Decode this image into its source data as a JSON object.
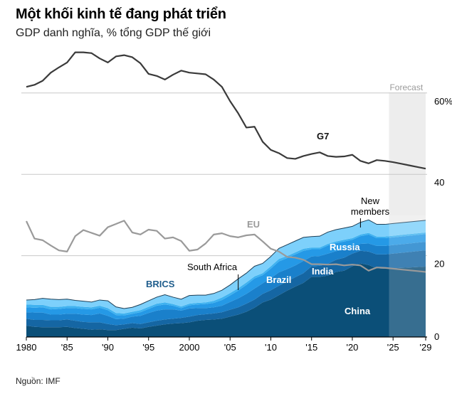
{
  "header": {
    "title": "Một khối kinh tế đang phát triển",
    "subtitle": "GDP danh nghĩa, % tổng GDP thế giới"
  },
  "footer": {
    "source": "Nguồn: IMF"
  },
  "colors": {
    "g7": "#3a3a3a",
    "eu": "#9a9a9a",
    "brics_label": "#1f5d8c",
    "china": "#0b4f78",
    "india": "#1566a3",
    "brazil": "#1a80cb",
    "russia": "#2599e6",
    "south_africa": "#3fb2f0",
    "new_members": "#7dd0fb",
    "forecast_shade": "#e6e6e6",
    "grid": "#c8c8c8"
  },
  "chart_data": {
    "type": "area",
    "title": "Một khối kinh tế đang phát triển",
    "subtitle": "GDP danh nghĩa, % tổng GDP thế giới",
    "x_range": [
      1980,
      2029
    ],
    "y_range": [
      0,
      70
    ],
    "y_ticks": [
      0,
      20,
      40,
      60
    ],
    "y_tick_labels": [
      "0",
      "20",
      "40",
      "60%"
    ],
    "x_ticks": [
      1980,
      1985,
      1990,
      1995,
      2000,
      2005,
      2010,
      2015,
      2020,
      2025,
      2029
    ],
    "x_tick_labels": [
      "1980",
      "'85",
      "'90",
      "'95",
      "2000",
      "'05",
      "'10",
      "'15",
      "'20",
      "'25",
      "'29"
    ],
    "forecast": {
      "start": 2024.5,
      "end": 2029,
      "label": "Forecast"
    },
    "years": [
      1980,
      1981,
      1982,
      1983,
      1984,
      1985,
      1986,
      1987,
      1988,
      1989,
      1990,
      1991,
      1992,
      1993,
      1994,
      1995,
      1996,
      1997,
      1998,
      1999,
      2000,
      2001,
      2002,
      2003,
      2004,
      2005,
      2006,
      2007,
      2008,
      2009,
      2010,
      2011,
      2012,
      2013,
      2014,
      2015,
      2016,
      2017,
      2018,
      2019,
      2020,
      2021,
      2022,
      2023,
      2024,
      2025,
      2026,
      2027,
      2028,
      2029
    ],
    "lines": [
      {
        "name": "G7",
        "label": "G7",
        "values": [
          61.5,
          62,
          63,
          65,
          66.3,
          67.5,
          70,
          70,
          69.8,
          68.5,
          67.5,
          69,
          69.3,
          68.8,
          67.3,
          64.7,
          64.2,
          63.3,
          64.5,
          65.5,
          65,
          64.8,
          64.6,
          63.3,
          61.5,
          58,
          55,
          51.5,
          51.7,
          48,
          46,
          45.2,
          44,
          43.8,
          44.5,
          45,
          45.4,
          44.5,
          44.3,
          44.4,
          44.8,
          43.3,
          42.7,
          43.5,
          43.3,
          43,
          42.6,
          42.2,
          41.8,
          41.4
        ]
      },
      {
        "name": "EU",
        "label": "EU",
        "values": [
          28.5,
          24.2,
          23.8,
          22.5,
          21.3,
          21,
          24.8,
          26.3,
          25.6,
          24.9,
          27,
          27.8,
          28.6,
          25.7,
          25.2,
          26.4,
          26.1,
          24.2,
          24.5,
          23.6,
          21.2,
          21.5,
          23,
          25.2,
          25.5,
          24.8,
          24.5,
          25,
          25.2,
          23.5,
          21.7,
          21,
          19.7,
          19.5,
          19,
          17.9,
          17.9,
          17.8,
          17.9,
          17.6,
          17.8,
          17.6,
          16.3,
          17.1,
          17,
          16.8,
          16.6,
          16.4,
          16.2,
          16
        ]
      }
    ],
    "stack": [
      {
        "name": "China",
        "label": "China",
        "values": [
          2.8,
          2.5,
          2.4,
          2.4,
          2.4,
          2.5,
          2.2,
          2,
          1.8,
          1.9,
          1.7,
          1.7,
          2,
          2.3,
          2.1,
          2.5,
          2.8,
          3.1,
          3.3,
          3.4,
          3.6,
          4,
          4.2,
          4.3,
          4.5,
          5,
          5.5,
          6.2,
          7.2,
          8.5,
          9.2,
          10.3,
          11.4,
          12.4,
          13.3,
          14.8,
          14.8,
          15.1,
          16,
          16.3,
          17.4,
          18.1,
          17.7,
          16.9,
          16.8,
          16.9,
          17,
          17.1,
          17.2,
          17.3
        ]
      },
      {
        "name": "India",
        "label": "India",
        "values": [
          1.7,
          1.7,
          1.8,
          1.7,
          1.7,
          1.8,
          1.8,
          1.7,
          1.8,
          1.7,
          1.5,
          1.2,
          1.1,
          1.1,
          1.1,
          1.1,
          1.2,
          1.2,
          1.2,
          1.3,
          1.4,
          1.4,
          1.4,
          1.5,
          1.6,
          1.7,
          1.8,
          2,
          2,
          2.1,
          2.3,
          2.3,
          2.3,
          2.3,
          2.4,
          2.6,
          2.7,
          2.9,
          3,
          3.2,
          3.1,
          3.1,
          3.3,
          3.4,
          3.5,
          3.6,
          3.7,
          3.8,
          3.9,
          4
        ]
      },
      {
        "name": "Brazil",
        "label": "Brazil",
        "values": [
          1.6,
          1.8,
          1.8,
          1.4,
          1.4,
          1.4,
          1.7,
          1.8,
          1.8,
          2.2,
          2,
          1.5,
          1.4,
          1.6,
          2,
          2.3,
          2.5,
          2.5,
          2.3,
          1.8,
          2,
          1.7,
          1.5,
          1.5,
          1.6,
          1.9,
          2.2,
          2.4,
          2.7,
          2.6,
          3,
          3.3,
          3,
          2.9,
          3,
          2.4,
          2.4,
          2.5,
          2.1,
          2,
          1.6,
          1.7,
          2,
          2.1,
          2.1,
          2.1,
          2.1,
          2.1,
          2.1,
          2.1
        ]
      },
      {
        "name": "Russia",
        "label": "Russia",
        "values": [
          1.2,
          1.2,
          1.3,
          1.3,
          1.4,
          1.4,
          1.4,
          1.4,
          1.4,
          1.4,
          1.4,
          1,
          0.8,
          0.7,
          0.9,
          1,
          1.2,
          1.2,
          0.9,
          0.6,
          0.8,
          0.9,
          1,
          1.1,
          1.4,
          1.6,
          1.9,
          2.2,
          2.5,
          2,
          2.3,
          2.7,
          2.7,
          2.7,
          2.5,
          1.8,
          1.7,
          2,
          2,
          2,
          1.8,
          1.9,
          2.2,
          1.9,
          1.9,
          1.9,
          1.9,
          1.9,
          1.9,
          1.9
        ]
      },
      {
        "name": "South Africa",
        "label": "South Africa",
        "values": [
          0.7,
          0.7,
          0.6,
          0.6,
          0.5,
          0.5,
          0.5,
          0.5,
          0.5,
          0.5,
          0.5,
          0.5,
          0.5,
          0.5,
          0.5,
          0.5,
          0.5,
          0.5,
          0.4,
          0.4,
          0.4,
          0.4,
          0.4,
          0.5,
          0.6,
          0.6,
          0.6,
          0.6,
          0.5,
          0.5,
          0.6,
          0.6,
          0.5,
          0.5,
          0.5,
          0.4,
          0.4,
          0.4,
          0.4,
          0.4,
          0.4,
          0.4,
          0.4,
          0.4,
          0.4,
          0.4,
          0.4,
          0.4,
          0.4,
          0.4
        ]
      },
      {
        "name": "New members",
        "label": "New\nmembers",
        "values": [
          1.1,
          1.3,
          1.6,
          1.9,
          1.8,
          1.7,
          1.4,
          1.4,
          1.3,
          1.4,
          1.8,
          1.5,
          1.2,
          1.1,
          1.4,
          1.5,
          1.6,
          1.9,
          1.7,
          1.8,
          2,
          1.9,
          1.8,
          1.8,
          1.8,
          2,
          2.3,
          2.3,
          2.5,
          2.4,
          2.4,
          2.6,
          2.8,
          2.8,
          2.8,
          2.7,
          2.8,
          2.9,
          2.9,
          2.9,
          2.9,
          3,
          3.2,
          3,
          3,
          3,
          3,
          3,
          3,
          3
        ]
      }
    ],
    "stack_group_label": "BRICS"
  }
}
